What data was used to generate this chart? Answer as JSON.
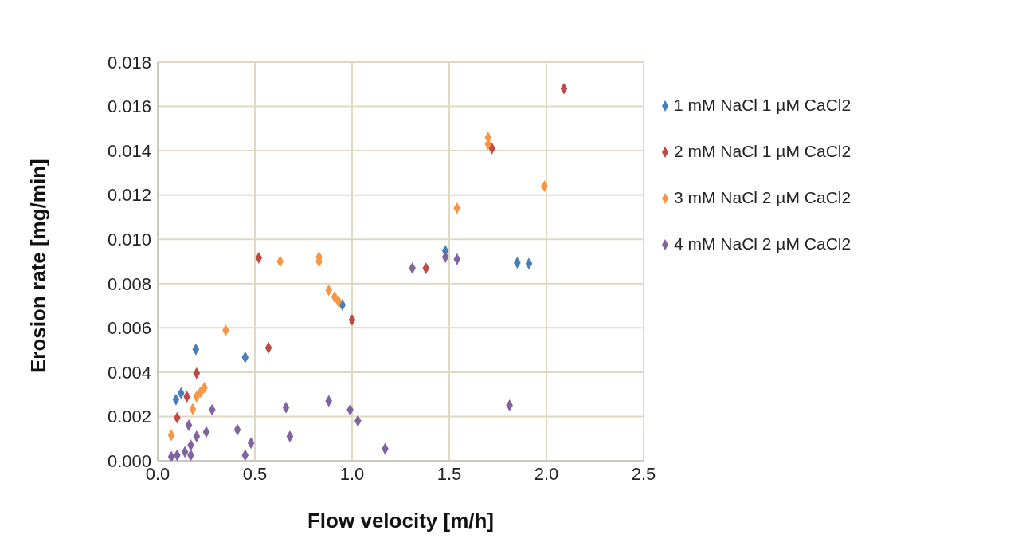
{
  "chart_data": {
    "type": "scatter",
    "xlabel": "Flow velocity [m/h]",
    "ylabel": "Erosion rate  [mg/min]",
    "xlim": [
      0,
      2.5
    ],
    "xticks": [
      {
        "value": 0,
        "label": "0.0"
      },
      0.5,
      {
        "value": 1,
        "label": "1.0"
      },
      1.5,
      {
        "value": 2,
        "label": "2.0"
      },
      2.5
    ],
    "ylim": [
      0,
      0.018
    ],
    "yticks": [
      {
        "value": 0,
        "label": "0.000"
      },
      0.002,
      0.004,
      0.006,
      0.008,
      {
        "value": 0.01,
        "label": "0.010"
      },
      0.012,
      0.014,
      0.016,
      0.018
    ],
    "grid": true,
    "legend": "right",
    "marker": "diamond",
    "series": [
      {
        "name": "1 mM NaCl 1 µM CaCl2",
        "color": "#4a7ebb",
        "x": [
          0.094,
          0.12,
          0.196,
          0.45,
          0.95,
          1.48,
          1.85,
          1.91
        ],
        "values": [
          0.00276,
          0.00305,
          0.00503,
          0.00467,
          0.00704,
          0.00948,
          0.00894,
          0.0089
        ]
      },
      {
        "name": "2 mM NaCl 1 µM CaCl2",
        "color": "#be4b48",
        "x": [
          0.1,
          0.15,
          0.2,
          0.52,
          0.57,
          1.0,
          1.38,
          1.72,
          2.09
        ],
        "values": [
          0.00194,
          0.0029,
          0.00395,
          0.00916,
          0.0051,
          0.00636,
          0.00869,
          0.0141,
          0.0168
        ]
      },
      {
        "name": "3 mM NaCl 2 µM CaCl2",
        "color": "#f79646",
        "x": [
          0.07,
          0.18,
          0.2,
          0.22,
          0.24,
          0.35,
          0.63,
          0.83,
          0.83,
          0.88,
          0.91,
          0.93,
          1.54,
          1.7,
          1.7,
          1.99
        ],
        "values": [
          0.00115,
          0.00233,
          0.0029,
          0.0031,
          0.0033,
          0.00589,
          0.009,
          0.0092,
          0.009,
          0.0077,
          0.0074,
          0.0072,
          0.0114,
          0.0146,
          0.0143,
          0.0124
        ]
      },
      {
        "name": "4 mM NaCl 2 µM CaCl2",
        "color": "#8064a2",
        "x": [
          0.07,
          0.1,
          0.14,
          0.17,
          0.16,
          0.17,
          0.2,
          0.25,
          0.28,
          0.41,
          0.45,
          0.48,
          0.66,
          0.68,
          0.88,
          0.99,
          1.03,
          1.17,
          1.31,
          1.48,
          1.54,
          1.81
        ],
        "values": [
          0.00018,
          0.00025,
          0.0004,
          0.0007,
          0.0016,
          0.00025,
          0.0011,
          0.0013,
          0.0023,
          0.0014,
          0.00025,
          0.0008,
          0.0024,
          0.0011,
          0.0027,
          0.0023,
          0.0018,
          0.00054,
          0.0087,
          0.0092,
          0.0091,
          0.0025
        ]
      }
    ]
  }
}
